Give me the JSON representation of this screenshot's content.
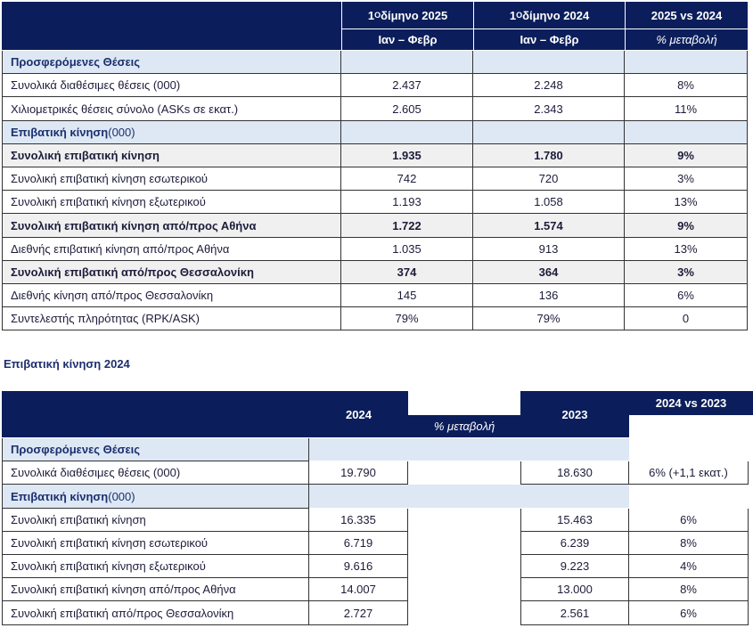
{
  "table1": {
    "header": {
      "col1_line1": "1",
      "col1_sup": "Ο",
      "col1_line1_rest": " δίμηνο 2025",
      "col1_line2": "Ιαν – Φεβρ",
      "col2_line1": "1",
      "col2_sup": "Ο",
      "col2_line1_rest": " δίμηνο 2024",
      "col2_line2": "Ιαν – Φεβρ",
      "col3_line1": "2025 vs 2024",
      "col3_line2": "% μεταβολή"
    },
    "rows": [
      {
        "type": "section",
        "label": "Προσφερόμενες Θέσεις",
        "label_suffix": ""
      },
      {
        "type": "data",
        "label": "Συνολικά διαθέσιμες θέσεις  (000)",
        "v1": "2.437",
        "v2": "2.248",
        "v3": "8%"
      },
      {
        "type": "data",
        "label": "Χιλιομετρικές θέσεις σύνολο (ASKs σε εκατ.)",
        "v1": "2.605",
        "v2": "2.343",
        "v3": "11%"
      },
      {
        "type": "section",
        "label": "Επιβατική κίνηση",
        "label_suffix": " (000)"
      },
      {
        "type": "bold",
        "label": "Συνολική επιβατική κίνηση",
        "v1": "1.935",
        "v2": "1.780",
        "v3": "9%"
      },
      {
        "type": "data",
        "label": "Συνολική επιβατική κίνηση εσωτερικού",
        "v1": "742",
        "v2": "720",
        "v3": "3%"
      },
      {
        "type": "data",
        "label": "Συνολική επιβατική κίνηση εξωτερικού",
        "v1": "1.193",
        "v2": "1.058",
        "v3": "13%"
      },
      {
        "type": "bold",
        "label": "Συνολική επιβατική κίνηση από/προς Αθήνα",
        "v1": "1.722",
        "v2": "1.574",
        "v3": "9%"
      },
      {
        "type": "data",
        "label": "Διεθνής επιβατική κίνηση από/προς Αθήνα",
        "v1": "1.035",
        "v2": "913",
        "v3": "13%"
      },
      {
        "type": "bold",
        "label": "Συνολική επιβατική  από/προς  Θεσσαλονίκη",
        "v1": "374",
        "v2": "364",
        "v3": "3%"
      },
      {
        "type": "data",
        "label": "Διεθνής κίνηση  από/προς  Θεσσαλονίκη",
        "v1": "145",
        "v2": "136",
        "v3": "6%"
      },
      {
        "type": "data",
        "label": "Συντελεστής πληρότητας (RPK/ASK)",
        "v1": "79%",
        "v2": "79%",
        "v3": "0"
      }
    ]
  },
  "section_title": "Επιβατική κίνηση 2024",
  "table2": {
    "header": {
      "col_2024": "2024",
      "col_change": "% μεταβολή",
      "col_2023": "2023",
      "col_vs": "2024 vs 2023"
    },
    "rows": [
      {
        "type": "section",
        "label": "Προσφερόμενες Θέσεις",
        "label_suffix": ""
      },
      {
        "type": "data",
        "label": "Συνολικά διαθέσιμες θέσεις  (000)",
        "v1": "19.790",
        "v2": "18.630",
        "v3": "6% (+1,1 εκατ.)"
      },
      {
        "type": "section",
        "label": "Επιβατική κίνηση",
        "label_suffix": " (000)"
      },
      {
        "type": "data",
        "label": "Συνολική επιβατική κίνηση",
        "v1": "16.335",
        "v2": "15.463",
        "v3": "6%"
      },
      {
        "type": "data",
        "label": "Συνολική επιβατική κίνηση εσωτερικού",
        "v1": "6.719",
        "v2": "6.239",
        "v3": "8%"
      },
      {
        "type": "data",
        "label": "Συνολική επιβατική κίνηση εξωτερικού",
        "v1": "9.616",
        "v2": "9.223",
        "v3": "4%"
      },
      {
        "type": "data",
        "label": "Συνολική επιβατική κίνηση από/προς Αθήνα",
        "v1": "14.007",
        "v2": "13.000",
        "v3": "8%"
      },
      {
        "type": "data",
        "label": "Συνολική επιβατική  από/προς  Θεσσαλονίκη",
        "v1": "2.727",
        "v2": "2.561",
        "v3": "6%"
      }
    ]
  }
}
